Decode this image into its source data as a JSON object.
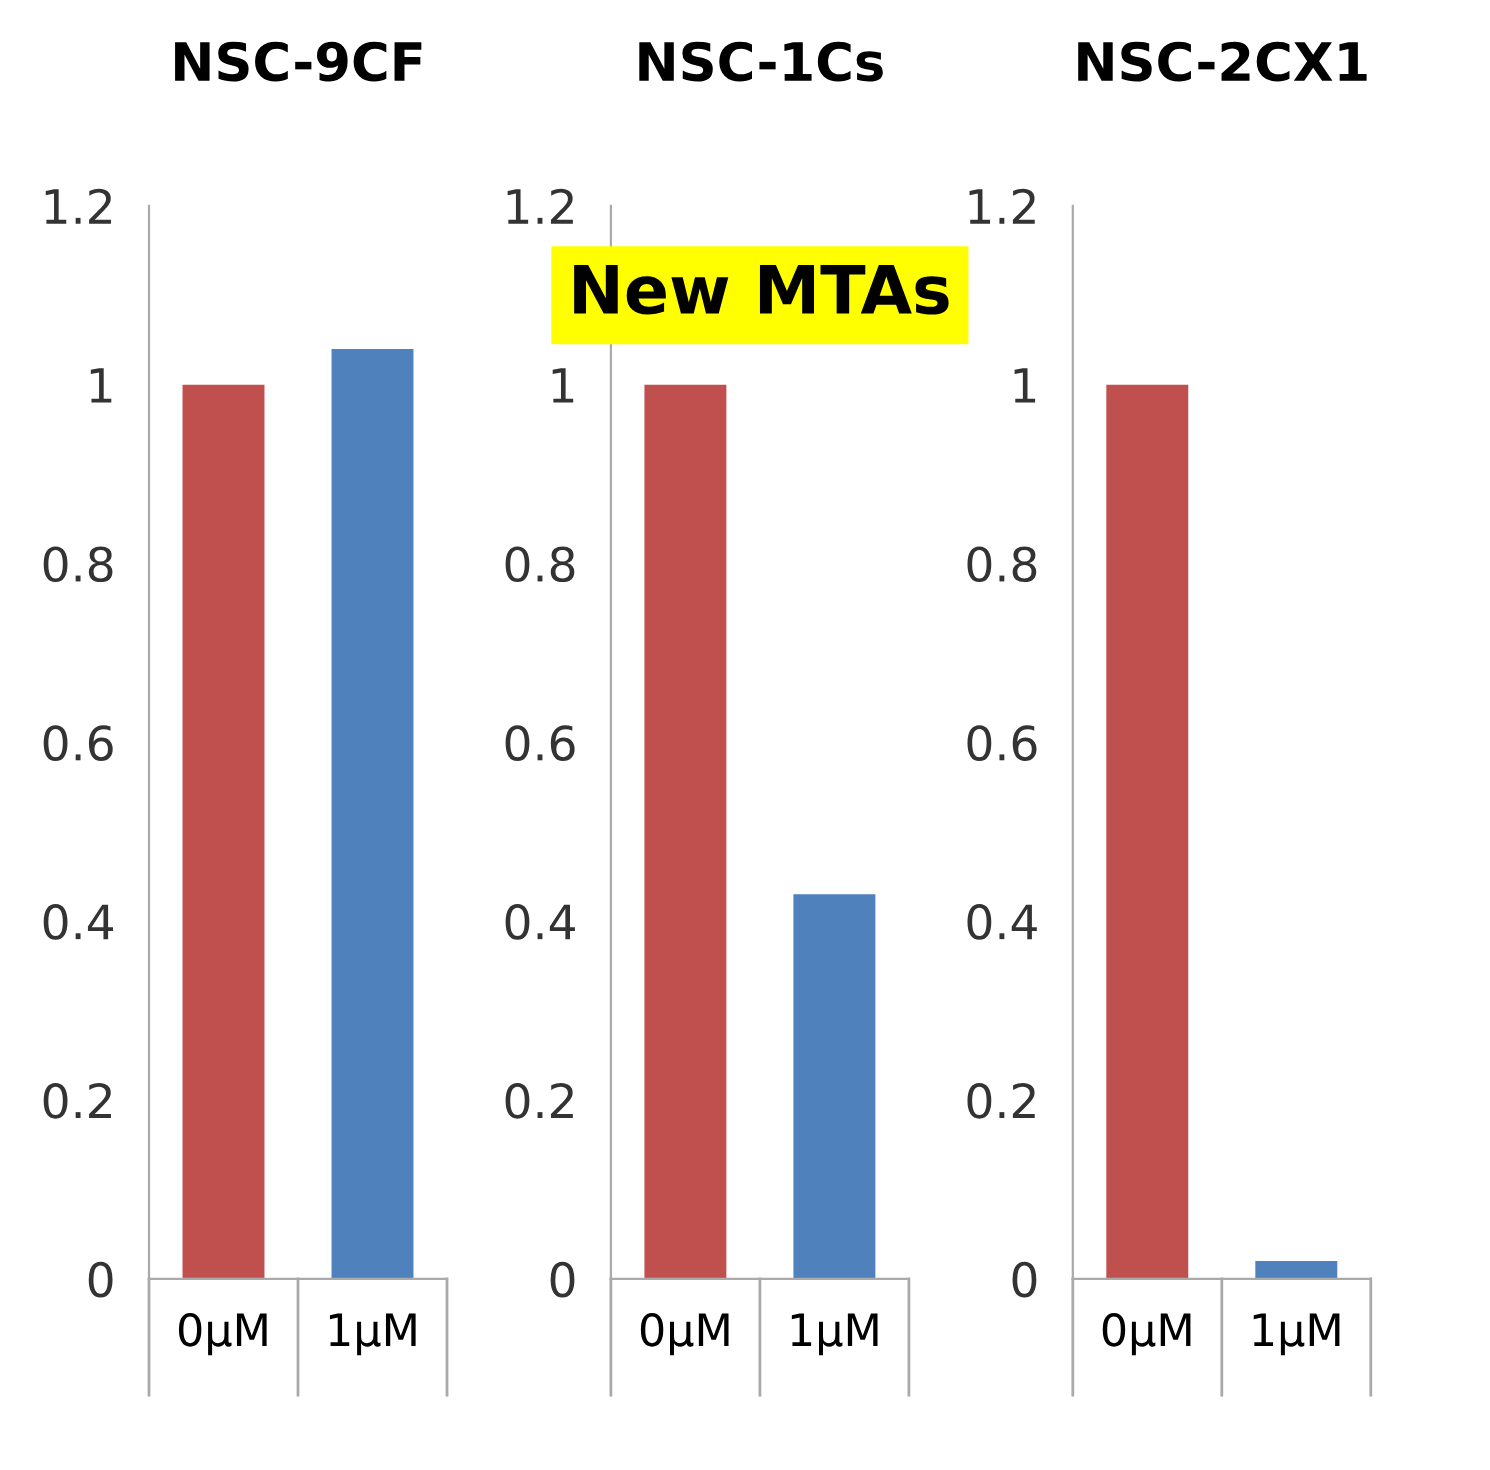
{
  "chart_data": [
    {
      "type": "bar",
      "title": "NSC-9CF",
      "categories": [
        "0μM",
        "1μM"
      ],
      "values": [
        1,
        1.04
      ],
      "colors": [
        "#c0504d",
        "#4f81bd"
      ],
      "ylim": [
        0,
        1.2
      ],
      "yticks": [
        0,
        0.2,
        0.4,
        0.6,
        0.8,
        1,
        1.2
      ],
      "grid": false,
      "legend": false
    },
    {
      "type": "bar",
      "title": "NSC-1Cs",
      "categories": [
        "0μM",
        "1μM"
      ],
      "values": [
        1,
        0.43
      ],
      "colors": [
        "#c0504d",
        "#4f81bd"
      ],
      "ylim": [
        0,
        1.2
      ],
      "yticks": [
        0,
        0.2,
        0.4,
        0.6,
        0.8,
        1,
        1.2
      ],
      "grid": false,
      "legend": false,
      "annotations": [
        "New MTAs"
      ]
    },
    {
      "type": "bar",
      "title": "NSC-2CX1",
      "categories": [
        "0μM",
        "1μM"
      ],
      "values": [
        1,
        0.02
      ],
      "colors": [
        "#c0504d",
        "#4f81bd"
      ],
      "ylim": [
        0,
        1.2
      ],
      "yticks": [
        0,
        0.2,
        0.4,
        0.6,
        0.8,
        1,
        1.2
      ],
      "grid": false,
      "legend": false
    }
  ]
}
